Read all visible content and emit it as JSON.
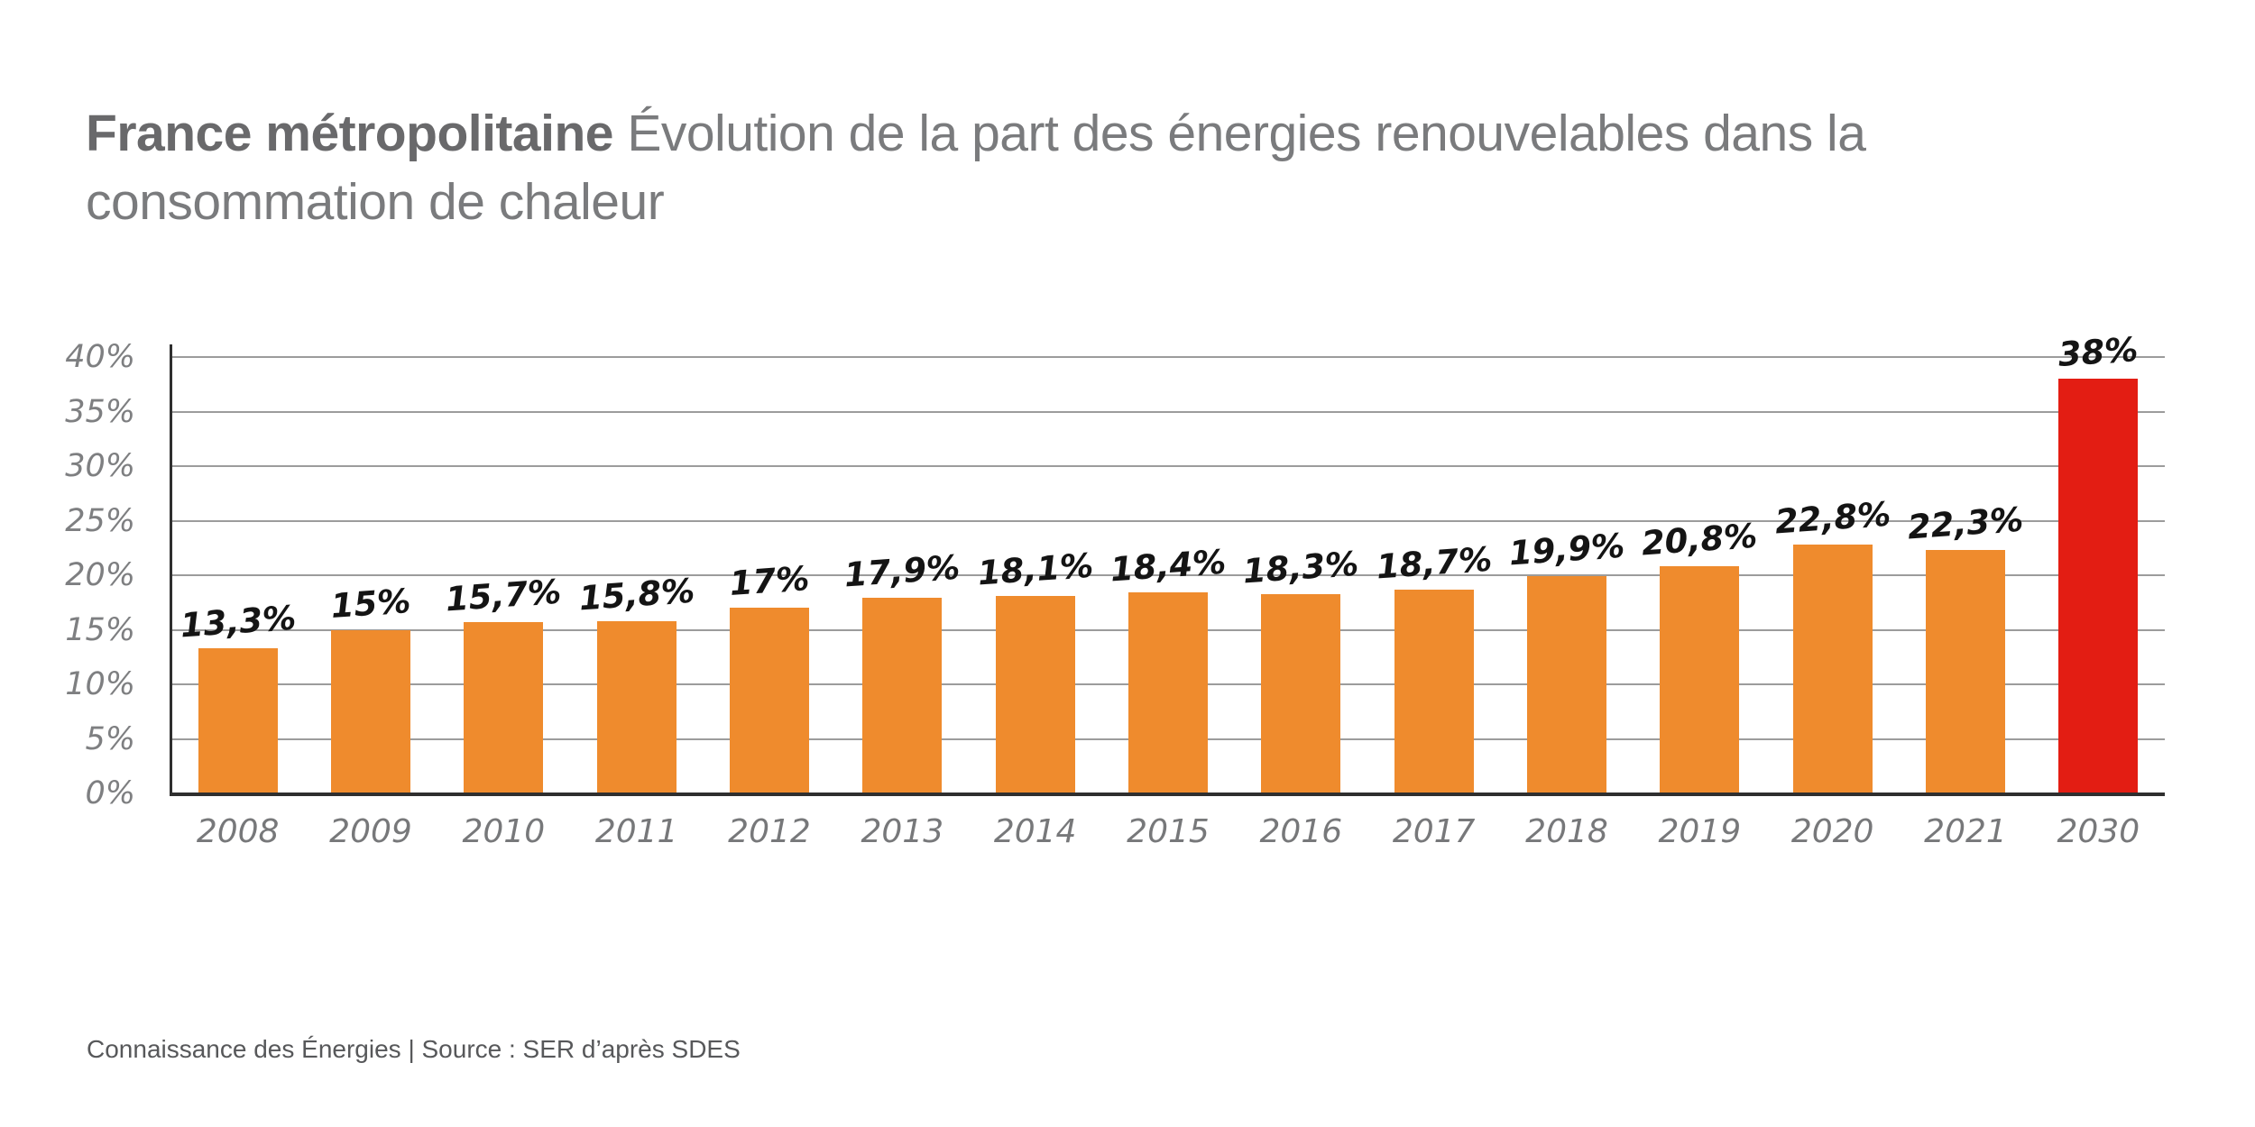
{
  "header": {
    "title_bold": "France métropolitaine",
    "title_rest": "Évolution de la part des énergies renouvelables dans la consommation de chaleur"
  },
  "chart_data": {
    "type": "bar",
    "title": "France métropolitaine Évolution de la part des énergies renouvelables dans la consommation de chaleur",
    "xlabel": "",
    "ylabel": "",
    "ylim": [
      0,
      40
    ],
    "grid": true,
    "legend": "none",
    "yticks": [
      {
        "value": 0,
        "label": "0%"
      },
      {
        "value": 5,
        "label": "5%"
      },
      {
        "value": 10,
        "label": "10%"
      },
      {
        "value": 15,
        "label": "15%"
      },
      {
        "value": 20,
        "label": "20%"
      },
      {
        "value": 25,
        "label": "25%"
      },
      {
        "value": 30,
        "label": "30%"
      },
      {
        "value": 35,
        "label": "35%"
      },
      {
        "value": 40,
        "label": "40%"
      }
    ],
    "categories": [
      "2008",
      "2009",
      "2010",
      "2011",
      "2012",
      "2013",
      "2014",
      "2015",
      "2016",
      "2017",
      "2018",
      "2019",
      "2020",
      "2021",
      "2030"
    ],
    "values": [
      13.3,
      15,
      15.7,
      15.8,
      17,
      17.9,
      18.1,
      18.4,
      18.3,
      18.7,
      19.9,
      20.8,
      22.8,
      22.3,
      38
    ],
    "value_labels": [
      "13,3%",
      "15%",
      "15,7%",
      "15,8%",
      "17%",
      "17,9%",
      "18,1%",
      "18,4%",
      "18,3%",
      "18,7%",
      "19,9%",
      "20,8%",
      "22,8%",
      "22,3%",
      "38%"
    ],
    "bar_colors": {
      "default": "#EF8B2D",
      "highlight": "#E31D13",
      "highlight_index": 14
    }
  },
  "colors": {
    "background": "#FFFFFF",
    "gridline": "#9C9C9C",
    "axis": "#2F2F2F",
    "title_bold": "#69696B",
    "title_regular": "#7A7B7D",
    "tick_label": "#77787A",
    "value_label": "#141414"
  },
  "footer": {
    "text": "Connaissance des Énergies | Source : SER d’après SDES"
  }
}
